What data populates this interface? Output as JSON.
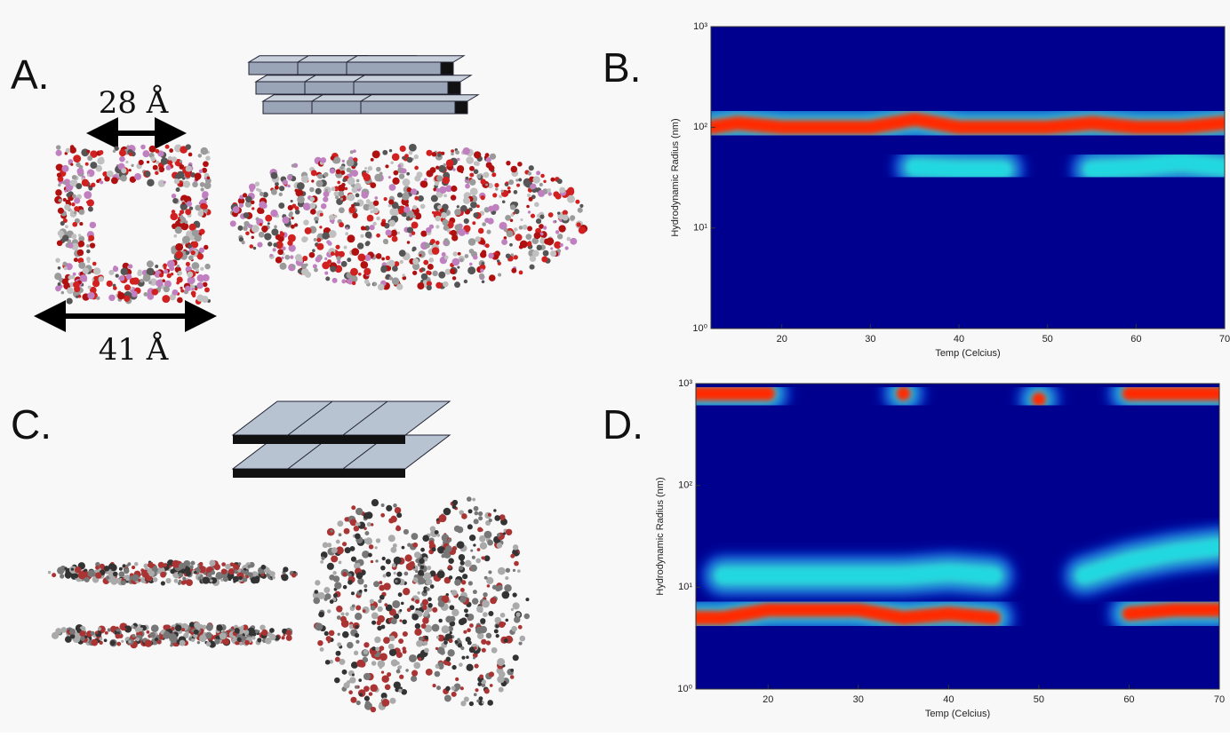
{
  "panels": {
    "a": {
      "label": "A.",
      "widths": [
        "28 Å",
        "41 Å"
      ]
    },
    "b": {
      "label": "B."
    },
    "c": {
      "label": "C."
    },
    "d": {
      "label": "D."
    }
  },
  "chart_data": [
    {
      "type": "heatmap",
      "xlabel": "Temp (Celcius)",
      "ylabel": "Hydrodynamic Radius (nm)",
      "background": "#00008f",
      "log_y": true,
      "x": [
        12,
        15,
        20,
        25,
        30,
        35,
        40,
        45,
        50,
        55,
        60,
        65,
        70
      ],
      "series": [
        {
          "color": "#ff2a00",
          "values": [
            100,
            110,
            100,
            100,
            100,
            120,
            100,
            100,
            100,
            110,
            100,
            100,
            110
          ]
        },
        {
          "color": "#22d8e0",
          "values": [
            null,
            null,
            null,
            null,
            null,
            40,
            38,
            38,
            null,
            38,
            40,
            45,
            40
          ]
        }
      ],
      "xlim": [
        12,
        70
      ],
      "xticks": [
        20,
        30,
        40,
        50,
        60,
        70
      ],
      "ylim": [
        1,
        1000
      ],
      "yticks": [
        {
          "value": 1,
          "label": "10⁰"
        },
        {
          "value": 10,
          "label": "10¹"
        },
        {
          "value": 100,
          "label": "10²"
        },
        {
          "value": 1000,
          "label": "10³"
        }
      ]
    },
    {
      "type": "heatmap",
      "xlabel": "Temp (Celcius)",
      "ylabel": "Hydrodynamic Radius (nm)",
      "background": "#00008f",
      "log_y": true,
      "x": [
        12,
        15,
        20,
        25,
        30,
        35,
        40,
        45,
        50,
        55,
        60,
        65,
        70
      ],
      "series": [
        {
          "color": "#ff2a00",
          "values": [
            5,
            5,
            6,
            6,
            6,
            5,
            5.5,
            5,
            null,
            null,
            5.5,
            6,
            6
          ]
        },
        {
          "color": "#22d8e0",
          "values": [
            null,
            13,
            13,
            13,
            13,
            13,
            14,
            13,
            null,
            13,
            18,
            22,
            25
          ]
        },
        {
          "color": "#ff2a00",
          "values": [
            800,
            800,
            800,
            null,
            null,
            800,
            null,
            null,
            700,
            null,
            800,
            800,
            800
          ]
        }
      ],
      "xlim": [
        12,
        70
      ],
      "xticks": [
        20,
        30,
        40,
        50,
        60,
        70
      ],
      "ylim": [
        1,
        1000
      ],
      "yticks": [
        {
          "value": 1,
          "label": "10⁰"
        },
        {
          "value": 10,
          "label": "10¹"
        },
        {
          "value": 100,
          "label": "10²"
        },
        {
          "value": 1000,
          "label": "10³"
        }
      ]
    }
  ]
}
